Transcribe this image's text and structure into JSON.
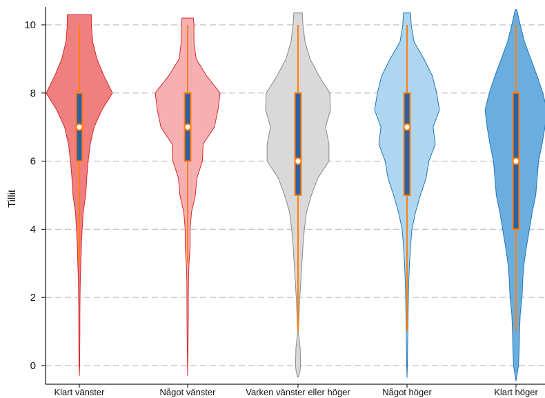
{
  "chart_data": {
    "type": "violin",
    "ylabel": "Tillit",
    "xlabel": "",
    "ylim": [
      -0.4,
      10.45
    ],
    "yticks": [
      "0",
      "2",
      "4",
      "6",
      "8",
      "10"
    ],
    "grid": "horizontal-dashed",
    "categories": [
      "Klart vänster",
      "Något vänster",
      "Varken vänster eller höger",
      "Något höger",
      "Klart höger"
    ],
    "series": [
      {
        "category": "Klart vänster",
        "fill": "#f07f7f",
        "stroke": "#d62728",
        "median": 7,
        "q1": 6,
        "q3": 8,
        "whisker_low": 3,
        "whisker_high": 10,
        "density": [
          [
            -0.3,
            0.0
          ],
          [
            0.0,
            0.4
          ],
          [
            0.5,
            0.6
          ],
          [
            1.0,
            0.8
          ],
          [
            1.5,
            0.8
          ],
          [
            2.0,
            1.0
          ],
          [
            2.5,
            1.4
          ],
          [
            3.0,
            2.2
          ],
          [
            3.5,
            2.8
          ],
          [
            4.0,
            4.0
          ],
          [
            4.5,
            5.5
          ],
          [
            5.0,
            9.0
          ],
          [
            5.5,
            10.5
          ],
          [
            6.0,
            12.5
          ],
          [
            6.5,
            15.5
          ],
          [
            7.0,
            21.0
          ],
          [
            7.5,
            32.0
          ],
          [
            8.0,
            47.0
          ],
          [
            8.5,
            35.0
          ],
          [
            9.0,
            25.0
          ],
          [
            9.5,
            19.0
          ],
          [
            10.0,
            17.0
          ],
          [
            10.3,
            17.0
          ]
        ]
      },
      {
        "category": "Något vänster",
        "fill": "#f6b0b2",
        "stroke": "#d62728",
        "median": 7,
        "q1": 6,
        "q3": 8,
        "whisker_low": 3,
        "whisker_high": 10,
        "density": [
          [
            -0.3,
            0.0
          ],
          [
            0.0,
            0.2
          ],
          [
            0.5,
            0.5
          ],
          [
            1.0,
            0.8
          ],
          [
            1.5,
            1.0
          ],
          [
            2.0,
            1.0
          ],
          [
            2.5,
            1.2
          ],
          [
            3.0,
            2.0
          ],
          [
            3.5,
            3.5
          ],
          [
            4.0,
            3.5
          ],
          [
            4.5,
            5.5
          ],
          [
            5.0,
            11.0
          ],
          [
            5.5,
            13.0
          ],
          [
            6.0,
            21.0
          ],
          [
            6.5,
            22.0
          ],
          [
            7.0,
            38.0
          ],
          [
            7.5,
            43.0
          ],
          [
            8.0,
            46.0
          ],
          [
            8.5,
            27.0
          ],
          [
            9.0,
            12.0
          ],
          [
            9.5,
            9.0
          ],
          [
            10.0,
            9.0
          ],
          [
            10.2,
            8.0
          ]
        ]
      },
      {
        "category": "Varken vänster eller höger",
        "fill": "#d9d9d9",
        "stroke": "#888888",
        "median": 6,
        "q1": 5,
        "q3": 8,
        "whisker_low": 1,
        "whisker_high": 10,
        "density": [
          [
            -0.35,
            0.0
          ],
          [
            -0.2,
            2.5
          ],
          [
            0.0,
            3.5
          ],
          [
            0.5,
            3.0
          ],
          [
            1.0,
            0.5
          ],
          [
            1.5,
            1.5
          ],
          [
            2.0,
            2.5
          ],
          [
            2.5,
            4.0
          ],
          [
            3.0,
            5.5
          ],
          [
            3.5,
            7.0
          ],
          [
            4.0,
            9.0
          ],
          [
            4.5,
            12.0
          ],
          [
            5.0,
            19.0
          ],
          [
            5.5,
            28.0
          ],
          [
            6.0,
            44.0
          ],
          [
            6.5,
            44.0
          ],
          [
            7.0,
            39.0
          ],
          [
            7.5,
            46.0
          ],
          [
            8.0,
            45.0
          ],
          [
            8.5,
            30.0
          ],
          [
            9.0,
            17.0
          ],
          [
            9.5,
            10.0
          ],
          [
            10.0,
            7.0
          ],
          [
            10.35,
            6.0
          ]
        ]
      },
      {
        "category": "Något höger",
        "fill": "#aed6f1",
        "stroke": "#1f77b4",
        "median": 7,
        "q1": 5,
        "q3": 8,
        "whisker_low": 1,
        "whisker_high": 10,
        "density": [
          [
            -0.35,
            0.0
          ],
          [
            0.0,
            0.5
          ],
          [
            0.5,
            0.8
          ],
          [
            1.0,
            1.2
          ],
          [
            1.5,
            1.5
          ],
          [
            2.0,
            2.0
          ],
          [
            2.5,
            2.5
          ],
          [
            3.0,
            3.5
          ],
          [
            3.5,
            5.0
          ],
          [
            4.0,
            7.0
          ],
          [
            4.5,
            12.0
          ],
          [
            5.0,
            19.0
          ],
          [
            5.5,
            27.0
          ],
          [
            6.0,
            31.0
          ],
          [
            6.5,
            40.0
          ],
          [
            7.0,
            37.0
          ],
          [
            7.5,
            46.0
          ],
          [
            8.0,
            42.0
          ],
          [
            8.5,
            36.0
          ],
          [
            9.0,
            24.0
          ],
          [
            9.5,
            10.0
          ],
          [
            10.0,
            6.0
          ],
          [
            10.35,
            5.0
          ]
        ]
      },
      {
        "category": "Klart höger",
        "fill": "#6aaee0",
        "stroke": "#1f77b4",
        "median": 6,
        "q1": 4,
        "q3": 8,
        "whisker_low": 1,
        "whisker_high": 10,
        "density": [
          [
            -0.45,
            0.0
          ],
          [
            0.0,
            3.5
          ],
          [
            0.5,
            4.5
          ],
          [
            1.0,
            5.0
          ],
          [
            1.5,
            6.0
          ],
          [
            2.0,
            8.5
          ],
          [
            2.5,
            9.5
          ],
          [
            3.0,
            11.5
          ],
          [
            3.5,
            15.0
          ],
          [
            4.0,
            19.0
          ],
          [
            4.5,
            23.0
          ],
          [
            5.0,
            28.0
          ],
          [
            5.5,
            30.0
          ],
          [
            6.0,
            32.0
          ],
          [
            6.5,
            37.0
          ],
          [
            7.0,
            41.0
          ],
          [
            7.5,
            44.0
          ],
          [
            8.0,
            38.0
          ],
          [
            8.5,
            30.0
          ],
          [
            9.0,
            21.0
          ],
          [
            9.5,
            12.0
          ],
          [
            10.0,
            6.0
          ],
          [
            10.45,
            1.0
          ]
        ]
      }
    ]
  }
}
